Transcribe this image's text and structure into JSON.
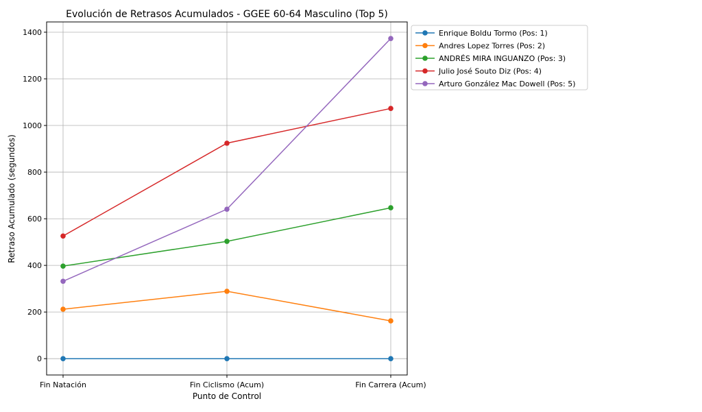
{
  "chart_data": {
    "type": "line",
    "title": "Evolución de Retrasos Acumulados - GGEE 60-64 Masculino (Top 5)",
    "xlabel": "Punto de Control",
    "ylabel": "Retraso Acumulado (segundos)",
    "categories": [
      "Fin Natación",
      "Fin Ciclismo (Acum)",
      "Fin Carrera (Acum)"
    ],
    "yticks": [
      0,
      200,
      400,
      600,
      800,
      1000,
      1200,
      1400
    ],
    "ylim": [
      -70,
      1444
    ],
    "grid": true,
    "legend_placement": "outside-top-right",
    "series": [
      {
        "name": "Enrique Boldu Tormo (Pos: 1)",
        "color": "#1f77b4",
        "values": [
          0,
          0,
          0
        ]
      },
      {
        "name": "Andres Lopez Torres (Pos: 2)",
        "color": "#ff7f0e",
        "values": [
          212,
          289,
          162
        ]
      },
      {
        "name": "ANDRÉS MIRA INGUANZO (Pos: 3)",
        "color": "#2ca02c",
        "values": [
          397,
          503,
          647
        ]
      },
      {
        "name": "Julio José Souto Diz (Pos: 4)",
        "color": "#d62728",
        "values": [
          526,
          924,
          1073
        ]
      },
      {
        "name": "Arturo González Mac Dowell (Pos: 5)",
        "color": "#9467bd",
        "values": [
          332,
          641,
          1373
        ]
      }
    ]
  }
}
